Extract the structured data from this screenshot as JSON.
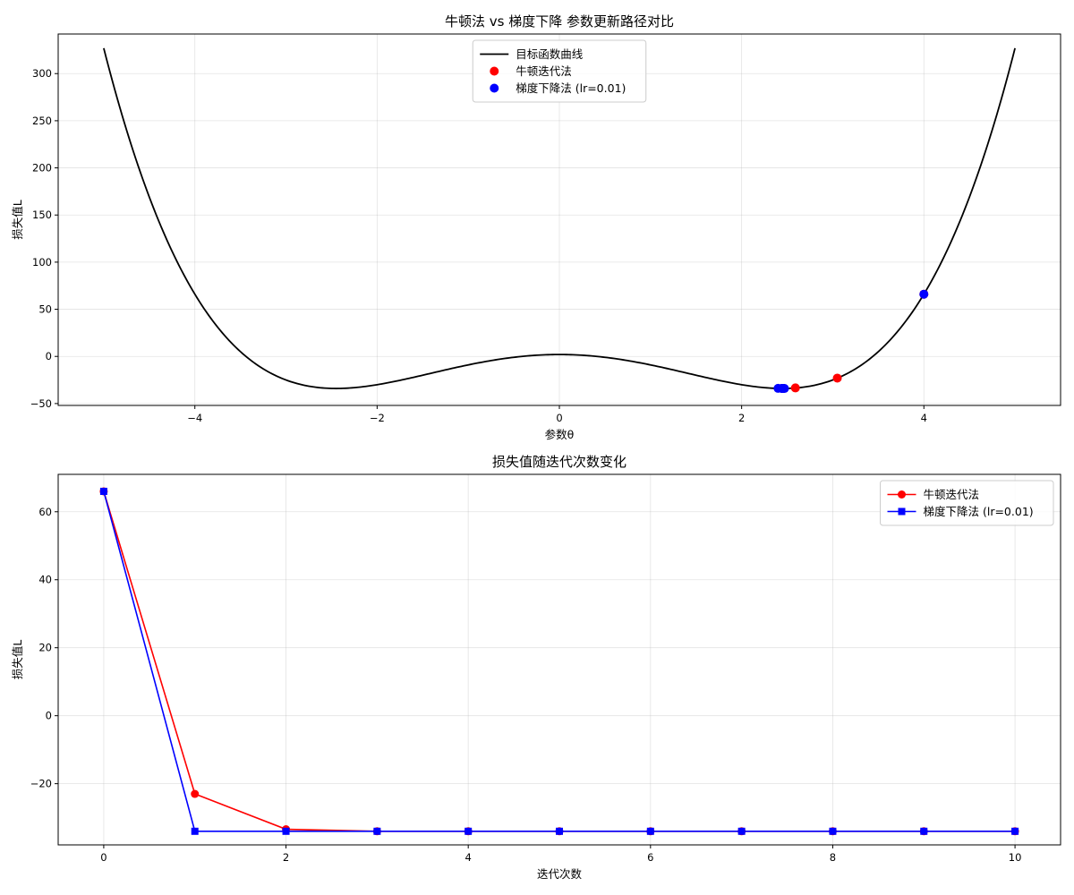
{
  "chart_data": [
    {
      "type": "line",
      "title": "牛顿法 vs 梯度下降 参数更新路径对比",
      "xlabel": "参数θ",
      "ylabel": "损失值L",
      "xlim": [
        -5.5,
        5.5
      ],
      "ylim": [
        -52,
        342
      ],
      "xticks": [
        -4,
        -2,
        0,
        2,
        4
      ],
      "yticks": [
        -50,
        0,
        50,
        100,
        150,
        200,
        250,
        300
      ],
      "grid": true,
      "legend_position": "upper center",
      "curve": {
        "name": "目标函数曲线",
        "x_range": [
          -5,
          5
        ],
        "formula": "θ^4 - 12θ^2 + 2",
        "color": "#000000"
      },
      "series": [
        {
          "name": "牛顿迭代法",
          "kind": "scatter",
          "color": "#ff0000",
          "x": [
            4.0,
            3.05,
            2.59,
            2.46,
            2.449,
            2.449,
            2.449,
            2.449,
            2.449,
            2.449,
            2.449
          ],
          "y": [
            66,
            -23,
            -33.4,
            -33.98,
            -34,
            -34,
            -34,
            -34,
            -34,
            -34,
            -34
          ]
        },
        {
          "name": "梯度下降法 (lr=0.01)",
          "kind": "scatter",
          "color": "#0000ff",
          "x": [
            4.0,
            2.4,
            2.47,
            2.44,
            2.455,
            2.447,
            2.451,
            2.449,
            2.45,
            2.449,
            2.449
          ],
          "y": [
            66,
            -33.9,
            -33.99,
            -33.99,
            -34,
            -34,
            -34,
            -34,
            -34,
            -34,
            -34
          ]
        }
      ]
    },
    {
      "type": "line",
      "title": "损失值随迭代次数变化",
      "xlabel": "迭代次数",
      "ylabel": "损失值L",
      "xlim": [
        -0.5,
        10.5
      ],
      "ylim": [
        -38,
        71
      ],
      "xticks": [
        0,
        2,
        4,
        6,
        8,
        10
      ],
      "yticks": [
        -20,
        0,
        20,
        40,
        60
      ],
      "grid": true,
      "legend_position": "upper right",
      "series": [
        {
          "name": "牛顿迭代法",
          "marker": "circle",
          "color": "#ff0000",
          "x": [
            0,
            1,
            2,
            3,
            4,
            5,
            6,
            7,
            8,
            9,
            10
          ],
          "y": [
            66,
            -23,
            -33.4,
            -34,
            -34,
            -34,
            -34,
            -34,
            -34,
            -34,
            -34
          ]
        },
        {
          "name": "梯度下降法 (lr=0.01)",
          "marker": "square",
          "color": "#0000ff",
          "x": [
            0,
            1,
            2,
            3,
            4,
            5,
            6,
            7,
            8,
            9,
            10
          ],
          "y": [
            66,
            -34,
            -34,
            -34,
            -34,
            -34,
            -34,
            -34,
            -34,
            -34,
            -34
          ]
        }
      ]
    }
  ]
}
